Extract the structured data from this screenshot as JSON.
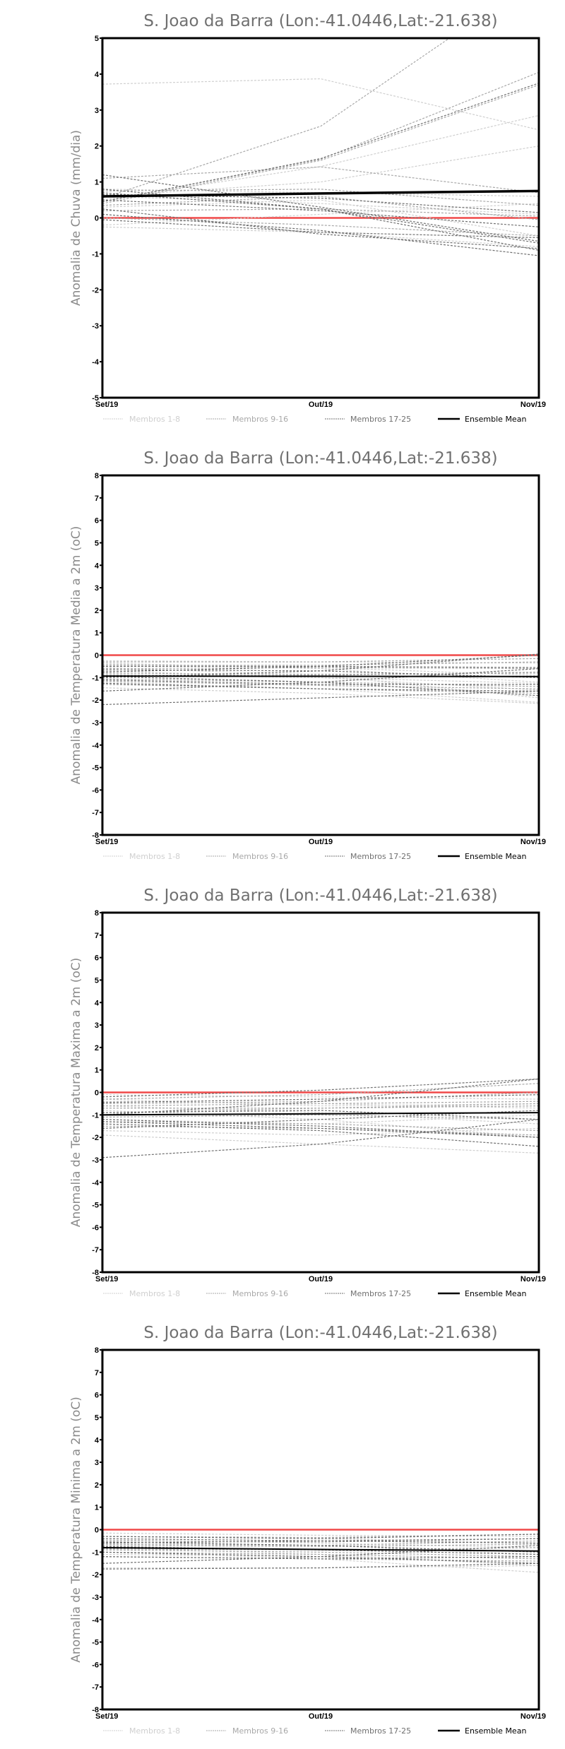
{
  "chart_data": [
    {
      "type": "line",
      "title": "S. Joao da Barra (Lon:-41.0446,Lat:-21.638)",
      "ylabel": "Anomalia de Chuva (mm/dia)",
      "xlabel": "",
      "categories": [
        "Set/19",
        "Out/19",
        "Nov/19"
      ],
      "ylim": [
        -5,
        5
      ],
      "yticks": [
        "5",
        "4",
        "3",
        "2",
        "1",
        "0",
        "-1",
        "-2",
        "-3",
        "-4",
        "-5"
      ],
      "reference_line": 0,
      "legend": [
        "Membros 1-8",
        "Membros 9-16",
        "Membros 17-25",
        "Ensemble Mean"
      ],
      "series": [
        {
          "name": "Membros 1-8",
          "values": [
            [
              3.72,
              3.87,
              2.45
            ],
            [
              0.5,
              1.43,
              2.85
            ],
            [
              0.6,
              1.0,
              2.0
            ],
            [
              0.8,
              0.7,
              0.6
            ],
            [
              -0.2,
              0.1,
              0.4
            ],
            [
              0.3,
              0.5,
              -0.5
            ],
            [
              -0.25,
              -0.4,
              -0.8
            ],
            [
              0.6,
              0.4,
              0.1
            ]
          ]
        },
        {
          "name": "Membros 9-16",
          "values": [
            [
              0.55,
              2.55,
              6.7
            ],
            [
              0.45,
              1.63,
              4.05
            ],
            [
              0.4,
              1.6,
              3.7
            ],
            [
              1.1,
              1.42,
              0.7
            ],
            [
              0.75,
              0.8,
              0.35
            ],
            [
              0.2,
              0.25,
              0.05
            ],
            [
              0.0,
              -0.2,
              -0.5
            ],
            [
              0.35,
              0.6,
              -0.05
            ]
          ]
        },
        {
          "name": "Membros 17-25",
          "values": [
            [
              1.2,
              0.3,
              -0.65
            ],
            [
              0.45,
              1.65,
              3.75
            ],
            [
              0.7,
              0.25,
              -0.9
            ],
            [
              0.1,
              -0.35,
              -1.05
            ],
            [
              0.25,
              -0.45,
              -0.85
            ],
            [
              0.5,
              0.2,
              -0.25
            ],
            [
              0.65,
              0.55,
              0.15
            ],
            [
              -0.05,
              -0.4,
              -0.55
            ],
            [
              0.8,
              0.25,
              -0.7
            ]
          ]
        },
        {
          "name": "Ensemble Mean",
          "values": [
            [
              0.6,
              0.68,
              0.75
            ]
          ]
        }
      ]
    },
    {
      "type": "line",
      "title": "S. Joao da Barra (Lon:-41.0446,Lat:-21.638)",
      "ylabel": "Anomalia de Temperatura Media a 2m (oC)",
      "xlabel": "",
      "categories": [
        "Set/19",
        "Out/19",
        "Nov/19"
      ],
      "ylim": [
        -8,
        8
      ],
      "yticks": [
        "8",
        "7",
        "6",
        "5",
        "4",
        "3",
        "2",
        "1",
        "0",
        "-1",
        "-2",
        "-3",
        "-4",
        "-5",
        "-6",
        "-7",
        "-8"
      ],
      "reference_line": 0,
      "legend": [
        "Membros 1-8",
        "Membros 9-16",
        "Membros 17-25",
        "Ensemble Mean"
      ],
      "series": [
        {
          "name": "Membros 1-8",
          "values": [
            [
              -0.25,
              -0.3,
              -0.35
            ],
            [
              -0.35,
              -0.6,
              -1.2
            ],
            [
              -0.55,
              -0.9,
              -1.9
            ],
            [
              -0.7,
              -1.0,
              -1.25
            ],
            [
              -1.2,
              -1.5,
              -2.1
            ],
            [
              -1.45,
              -1.7,
              -2.15
            ],
            [
              -0.85,
              -1.0,
              -1.55
            ],
            [
              -0.4,
              -0.55,
              -0.9
            ]
          ]
        },
        {
          "name": "Membros 9-16",
          "values": [
            [
              -0.3,
              -0.3,
              -0.15
            ],
            [
              -0.45,
              -0.45,
              -0.3
            ],
            [
              -0.6,
              -0.55,
              -0.6
            ],
            [
              -0.9,
              -0.9,
              -0.75
            ],
            [
              -1.05,
              -1.2,
              -1.4
            ],
            [
              -1.15,
              -1.35,
              -1.5
            ],
            [
              -1.3,
              -1.5,
              -1.7
            ],
            [
              -0.8,
              -0.85,
              -0.8
            ]
          ]
        },
        {
          "name": "Membros 17-25",
          "values": [
            [
              -0.5,
              -0.5,
              -0.55
            ],
            [
              -1.0,
              -0.7,
              0.05
            ],
            [
              -1.6,
              -1.2,
              -0.6
            ],
            [
              -2.2,
              -1.9,
              -1.6
            ],
            [
              -0.65,
              -0.7,
              -1.0
            ],
            [
              -0.95,
              -1.2,
              -1.8
            ],
            [
              -1.1,
              -1.3,
              -1.3
            ],
            [
              -0.75,
              -0.5,
              0.0
            ],
            [
              -1.25,
              -1.5,
              -1.6
            ]
          ]
        },
        {
          "name": "Ensemble Mean",
          "values": [
            [
              -0.93,
              -0.94,
              -0.95
            ]
          ]
        }
      ]
    },
    {
      "type": "line",
      "title": "S. Joao da Barra (Lon:-41.0446,Lat:-21.638)",
      "ylabel": "Anomalia de Temperatura Maxima a 2m (oC)",
      "xlabel": "",
      "categories": [
        "Set/19",
        "Out/19",
        "Nov/19"
      ],
      "ylim": [
        -8,
        8
      ],
      "yticks": [
        "8",
        "7",
        "6",
        "5",
        "4",
        "3",
        "2",
        "1",
        "0",
        "-1",
        "-2",
        "-3",
        "-4",
        "-5",
        "-6",
        "-7",
        "-8"
      ],
      "reference_line": 0,
      "legend": [
        "Membros 1-8",
        "Membros 9-16",
        "Membros 17-25",
        "Ensemble Mean"
      ],
      "series": [
        {
          "name": "Membros 1-8",
          "values": [
            [
              -0.1,
              -0.2,
              -0.3
            ],
            [
              -0.4,
              -0.5,
              -0.7
            ],
            [
              -0.8,
              -1.2,
              -2.0
            ],
            [
              -1.9,
              -2.3,
              -2.7
            ],
            [
              -0.6,
              -0.9,
              -1.4
            ],
            [
              -1.7,
              -1.9,
              -1.6
            ],
            [
              -1.2,
              -1.4,
              -1.0
            ],
            [
              -0.3,
              -0.6,
              -0.5
            ]
          ]
        },
        {
          "name": "Membros 9-16",
          "values": [
            [
              -0.3,
              -0.1,
              0.4
            ],
            [
              -0.5,
              -0.4,
              0.0
            ],
            [
              -0.6,
              -0.5,
              -0.4
            ],
            [
              -0.9,
              -0.7,
              -0.5
            ],
            [
              -1.1,
              -1.0,
              -1.2
            ],
            [
              -1.3,
              -1.4,
              -1.7
            ],
            [
              -1.5,
              -1.6,
              -1.9
            ],
            [
              -0.7,
              -0.7,
              -0.6
            ]
          ]
        },
        {
          "name": "Membros 17-25",
          "values": [
            [
              -0.2,
              0.1,
              0.6
            ],
            [
              -1.0,
              -0.4,
              0.6
            ],
            [
              -2.9,
              -2.3,
              -1.2
            ],
            [
              -1.2,
              -1.5,
              -2.0
            ],
            [
              -1.6,
              -1.2,
              -0.8
            ],
            [
              -0.45,
              -0.3,
              -0.1
            ],
            [
              -1.3,
              -1.6,
              -2.0
            ],
            [
              -0.9,
              -0.8,
              -1.2
            ],
            [
              -1.4,
              -1.7,
              -2.4
            ]
          ]
        },
        {
          "name": "Ensemble Mean",
          "values": [
            [
              -1.0,
              -0.95,
              -0.9
            ]
          ]
        }
      ]
    },
    {
      "type": "line",
      "title": "S. Joao da Barra (Lon:-41.0446,Lat:-21.638)",
      "ylabel": "Anomalia de Temperatura Minima a 2m (oC)",
      "xlabel": "",
      "categories": [
        "Set/19",
        "Out/19",
        "Nov/19"
      ],
      "ylim": [
        -8,
        8
      ],
      "yticks": [
        "8",
        "7",
        "6",
        "5",
        "4",
        "3",
        "2",
        "1",
        "0",
        "-1",
        "-2",
        "-3",
        "-4",
        "-5",
        "-6",
        "-7",
        "-8"
      ],
      "reference_line": 0,
      "legend": [
        "Membros 1-8",
        "Membros 9-16",
        "Membros 17-25",
        "Ensemble Mean"
      ],
      "series": [
        {
          "name": "Membros 1-8",
          "values": [
            [
              -0.15,
              -0.25,
              -0.3
            ],
            [
              -0.3,
              -0.4,
              -0.6
            ],
            [
              -0.55,
              -0.7,
              -1.1
            ],
            [
              -0.8,
              -1.1,
              -1.6
            ],
            [
              -1.0,
              -1.3,
              -1.9
            ],
            [
              -1.7,
              -1.7,
              -1.6
            ],
            [
              -0.45,
              -0.6,
              -0.8
            ],
            [
              -1.1,
              -1.2,
              -1.5
            ]
          ]
        },
        {
          "name": "Membros 9-16",
          "values": [
            [
              -0.3,
              -0.35,
              -0.2
            ],
            [
              -0.5,
              -0.55,
              -0.4
            ],
            [
              -0.65,
              -0.7,
              -0.5
            ],
            [
              -0.85,
              -0.9,
              -0.8
            ],
            [
              -1.0,
              -1.1,
              -1.3
            ],
            [
              -1.2,
              -1.3,
              -1.4
            ],
            [
              -0.7,
              -0.75,
              -0.65
            ],
            [
              -0.9,
              -1.0,
              -1.2
            ]
          ]
        },
        {
          "name": "Membros 17-25",
          "values": [
            [
              -0.3,
              -0.4,
              -0.2
            ],
            [
              -0.6,
              -0.5,
              -0.4
            ],
            [
              -1.5,
              -1.2,
              -0.7
            ],
            [
              -1.75,
              -1.7,
              -1.5
            ],
            [
              -0.75,
              -0.9,
              -1.1
            ],
            [
              -1.0,
              -1.2,
              -1.5
            ],
            [
              -0.4,
              -0.5,
              -0.6
            ],
            [
              -1.2,
              -1.3,
              -1.2
            ],
            [
              -0.55,
              -0.7,
              -1.0
            ]
          ]
        },
        {
          "name": "Ensemble Mean",
          "values": [
            [
              -0.8,
              -0.88,
              -0.95
            ]
          ]
        }
      ]
    }
  ],
  "colors": {
    "members_1_8": "#cfcfcf",
    "members_9_16": "#a8a8a8",
    "members_17_25": "#707070",
    "ensemble_mean": "#000000",
    "zero_line": "#f04848"
  }
}
